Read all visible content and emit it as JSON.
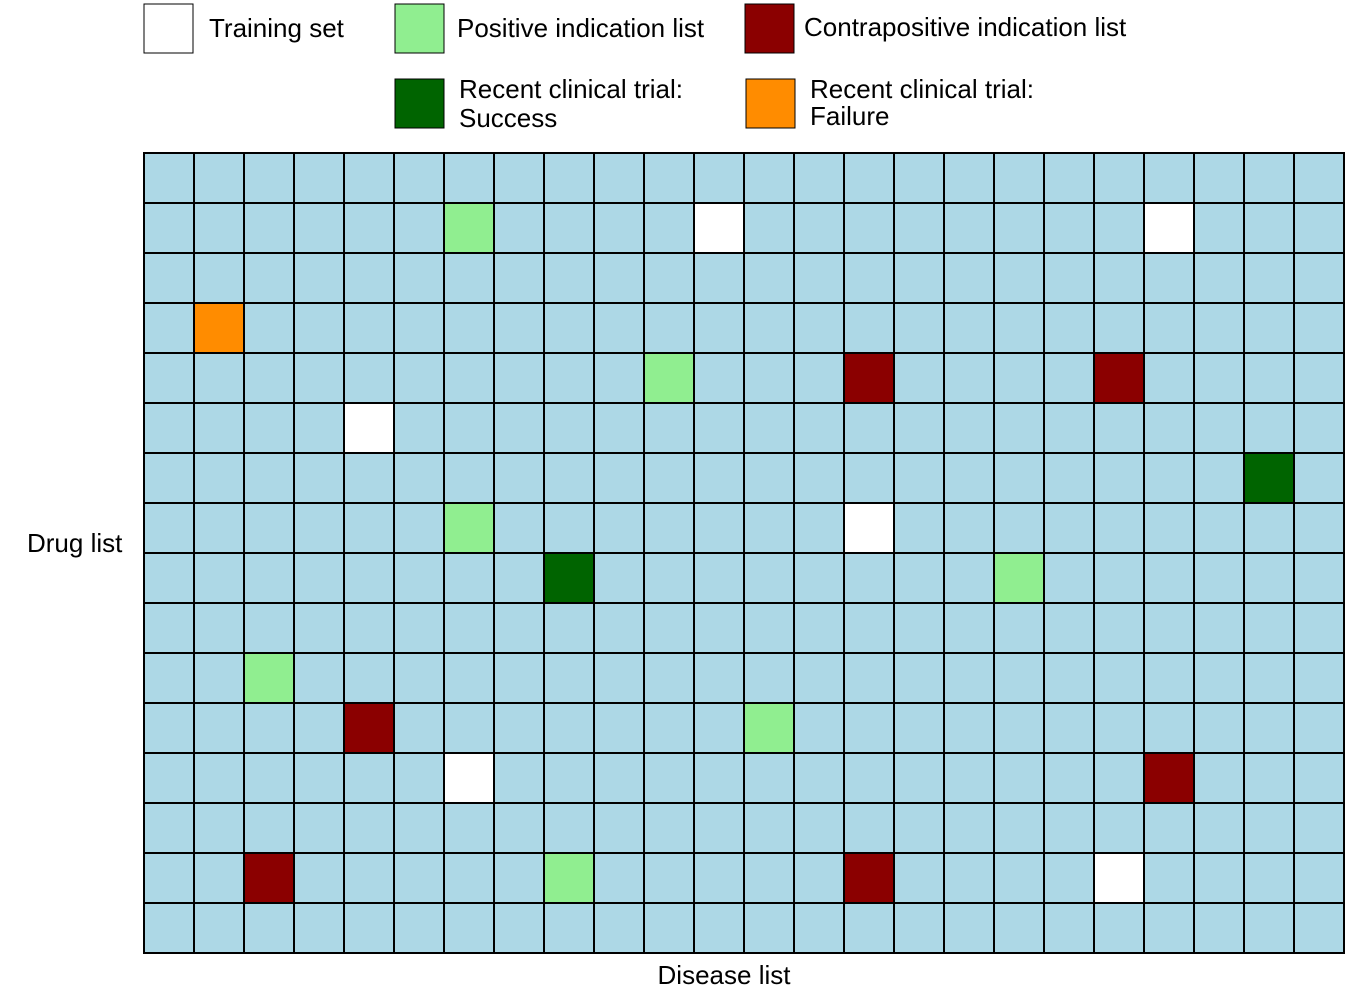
{
  "legend": [
    {
      "lines": [
        "Training set"
      ],
      "color": "#ffffff"
    },
    {
      "lines": [
        "Positive indication list"
      ],
      "color": "#90ee90"
    },
    {
      "lines": [
        "Contrapositive indication list"
      ],
      "color": "#8b0000"
    },
    {
      "lines": [
        "Recent clinical trial:",
        "Success"
      ],
      "color": "#006400"
    },
    {
      "lines": [
        "Recent clinical trial:",
        "Failure"
      ],
      "color": "#ff8c00"
    }
  ],
  "matrix": {
    "fill": "#add8e6",
    "y_label": "Drug list",
    "x_label": "Disease list"
  }
}
